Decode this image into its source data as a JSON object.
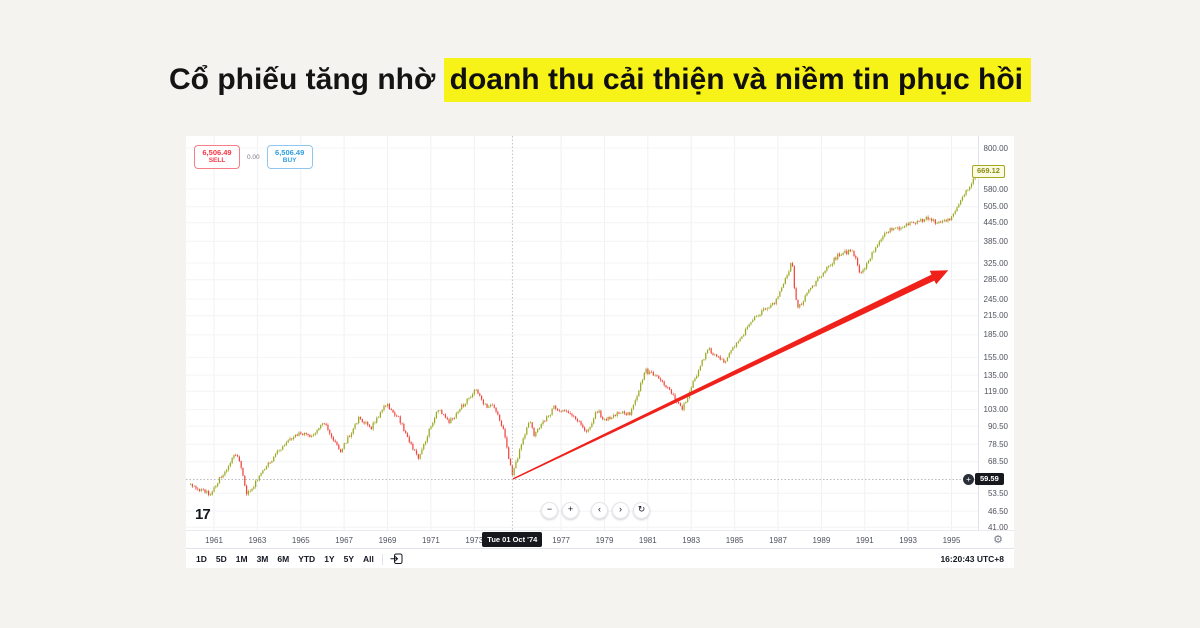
{
  "headline": {
    "prefix": "Cổ phiếu tăng nhờ ",
    "highlight": "doanh thu cải thiện và niềm tin phục hồi"
  },
  "colors": {
    "highlight_bg": "#f7f218",
    "sell_red": "#f23645",
    "buy_blue": "#2f9fe0",
    "candle_up": "#9aa81f",
    "candle_down": "#ef453f",
    "arrow_red": "#f0211a",
    "grid_v": "#f0f1f3",
    "grid_h": "#f4f4f6",
    "crosshair": "#a3a6af"
  },
  "order_panel": {
    "sell_price": "6,506.49",
    "sell_label": "SELL",
    "spread": "0.00",
    "buy_price": "6,506.49",
    "buy_label": "BUY"
  },
  "price_axis": {
    "ticks": [
      "800.00",
      "580.00",
      "505.00",
      "445.00",
      "385.00",
      "325.00",
      "285.00",
      "245.00",
      "215.00",
      "185.00",
      "155.00",
      "135.00",
      "119.00",
      "103.00",
      "90.50",
      "78.50",
      "68.50",
      "53.50",
      "46.50",
      "41.00"
    ],
    "current_price_label": "669.12",
    "crosshair_price_label": "59.59",
    "plus_glyph": "+"
  },
  "time_axis": {
    "years": [
      "1961",
      "1963",
      "1965",
      "1967",
      "1969",
      "1971",
      "1973",
      "1977",
      "1979",
      "1981",
      "1983",
      "1985",
      "1987",
      "1989",
      "1991",
      "1993",
      "1995"
    ],
    "crosshair_date_label": "Tue 01 Oct '74",
    "gear_glyph": "⚙"
  },
  "toolbar": {
    "ranges": [
      "1D",
      "5D",
      "1M",
      "3M",
      "6M",
      "YTD",
      "1Y",
      "5Y",
      "All"
    ],
    "clock": "16:20:43 UTC+8"
  },
  "nav_controls": {
    "zoom_out": "−",
    "zoom_in": "+",
    "scroll_left": "‹",
    "scroll_right": "›",
    "reset": "↻"
  },
  "logo_text": "17",
  "chart_data": {
    "type": "candlestick",
    "timeframe": "monthly",
    "x_range_years": [
      1959.71,
      1996.22
    ],
    "y_scale": "log",
    "y_range": [
      40.1,
      878.8
    ],
    "grid": true,
    "current_price": 669.12,
    "crosshair": {
      "year": 1974.75,
      "price": 59.59,
      "date_label": "Tue 01 Oct '74"
    },
    "arrow": {
      "from": {
        "year": 1974.78,
        "price": 59.8
      },
      "to": {
        "year": 1994.85,
        "price": 307
      }
    },
    "anchors_monthly_close": [
      [
        1959.92,
        57.0
      ],
      [
        1960.8,
        53.0
      ],
      [
        1961.95,
        71.6
      ],
      [
        1962.2,
        69.0
      ],
      [
        1962.5,
        53.5
      ],
      [
        1962.8,
        56.5
      ],
      [
        1963.95,
        75.0
      ],
      [
        1965.0,
        86.5
      ],
      [
        1965.5,
        82.5
      ],
      [
        1966.1,
        93.5
      ],
      [
        1966.8,
        73.5
      ],
      [
        1967.7,
        96.5
      ],
      [
        1968.25,
        89.0
      ],
      [
        1968.9,
        108.0
      ],
      [
        1969.5,
        97.0
      ],
      [
        1970.4,
        70.0
      ],
      [
        1971.3,
        103.0
      ],
      [
        1971.85,
        93.5
      ],
      [
        1972.95,
        118.0
      ],
      [
        1973.05,
        119.5
      ],
      [
        1973.6,
        104.0
      ],
      [
        1973.8,
        108.0
      ],
      [
        1974.3,
        90.0
      ],
      [
        1974.75,
        62.3
      ],
      [
        1975.55,
        95.0
      ],
      [
        1975.75,
        84.0
      ],
      [
        1976.7,
        105.0
      ],
      [
        1977.5,
        98.0
      ],
      [
        1978.2,
        87.0
      ],
      [
        1978.7,
        103.0
      ],
      [
        1978.9,
        94.0
      ],
      [
        1979.75,
        101.0
      ],
      [
        1980.2,
        100.0
      ],
      [
        1980.9,
        140.0
      ],
      [
        1981.6,
        130.0
      ],
      [
        1982.6,
        104.0
      ],
      [
        1983.75,
        166.0
      ],
      [
        1984.55,
        150.5
      ],
      [
        1985.9,
        211.0
      ],
      [
        1986.7,
        236.0
      ],
      [
        1986.95,
        242.0
      ],
      [
        1987.65,
        329.0
      ],
      [
        1987.8,
        247.0
      ],
      [
        1987.95,
        230.0
      ],
      [
        1988.5,
        266.0
      ],
      [
        1989.75,
        346.0
      ],
      [
        1990.45,
        358.0
      ],
      [
        1990.8,
        297.0
      ],
      [
        1991.95,
        417.0
      ],
      [
        1992.95,
        436.0
      ],
      [
        1993.9,
        461.0
      ],
      [
        1994.3,
        445.0
      ],
      [
        1994.95,
        459.0
      ],
      [
        1995.5,
        545.0
      ],
      [
        1995.95,
        614.0
      ],
      [
        1996.05,
        662.0
      ],
      [
        1996.17,
        669.12
      ]
    ]
  }
}
